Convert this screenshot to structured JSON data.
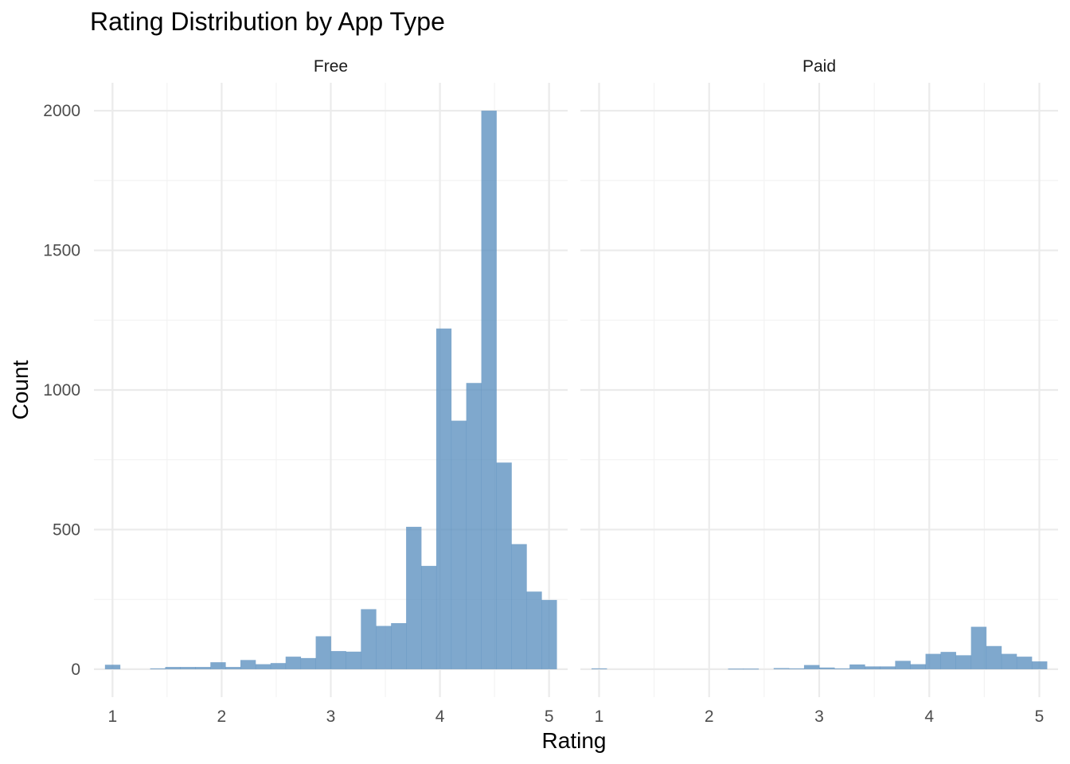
{
  "chart_data": {
    "type": "bar",
    "title": "Rating Distribution by App Type",
    "xlabel": "Rating",
    "ylabel": "Count",
    "xlim": [
      0.83,
      5.17
    ],
    "ylim": [
      -100,
      2100
    ],
    "x_ticks": [
      1,
      2,
      3,
      4,
      5
    ],
    "y_ticks": [
      0,
      500,
      1000,
      1500,
      2000
    ],
    "bar_color": "#5b8fbf",
    "grid": true,
    "bin_edges": [
      0.931,
      1.069,
      1.207,
      1.345,
      1.483,
      1.621,
      1.759,
      1.897,
      2.035,
      2.172,
      2.31,
      2.448,
      2.586,
      2.724,
      2.862,
      3.0,
      3.138,
      3.276,
      3.414,
      3.552,
      3.69,
      3.828,
      3.966,
      4.103,
      4.241,
      4.379,
      4.517,
      4.655,
      4.793,
      4.931,
      5.069
    ],
    "panels": [
      {
        "name": "Free",
        "values": [
          16,
          0,
          0,
          3,
          8,
          8,
          8,
          25,
          8,
          33,
          18,
          22,
          45,
          40,
          118,
          65,
          63,
          215,
          155,
          165,
          510,
          370,
          1220,
          890,
          1025,
          2000,
          740,
          448,
          278,
          248
        ]
      },
      {
        "name": "Paid",
        "values": [
          3,
          0,
          0,
          0,
          0,
          0,
          0,
          0,
          0,
          2,
          2,
          0,
          4,
          3,
          15,
          6,
          3,
          17,
          10,
          10,
          30,
          18,
          55,
          62,
          50,
          152,
          83,
          55,
          45,
          28
        ]
      }
    ]
  }
}
